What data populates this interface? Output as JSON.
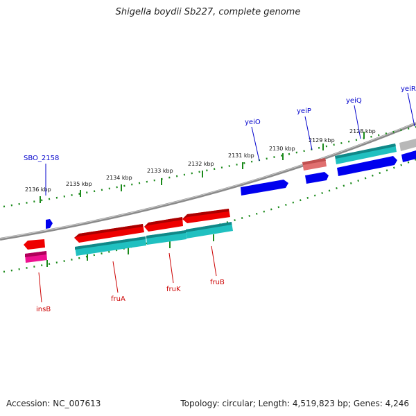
{
  "title": "Shigella boydii Sb227, complete genome",
  "footer": {
    "accession": "Accession: NC_007613",
    "summary": "Topology: circular; Length: 4,519,823 bp; Genes: 4,246"
  },
  "scale_labels": [
    "2136 kbp",
    "2135 kbp",
    "2134 kbp",
    "2133 kbp",
    "2132 kbp",
    "2131 kbp",
    "2130 kbp",
    "2129 kbp",
    "2128 kbp"
  ],
  "genes_forward": [
    "SBO_2158",
    "yeiO",
    "yeiP",
    "yeiQ",
    "yeiR"
  ],
  "genes_reverse": [
    "insB",
    "fruA",
    "fruK",
    "fruB"
  ],
  "colors": {
    "backbone": "#888888",
    "forward_cds": "#0000ee",
    "reverse_cds": "#ee0000",
    "rna_feature": "#20c0c0",
    "pseudo_feature": "#ee1090",
    "misc_feature": "#e07070",
    "ruler": "#228822",
    "forward_label": "#0000cc",
    "reverse_label": "#cc0000"
  }
}
